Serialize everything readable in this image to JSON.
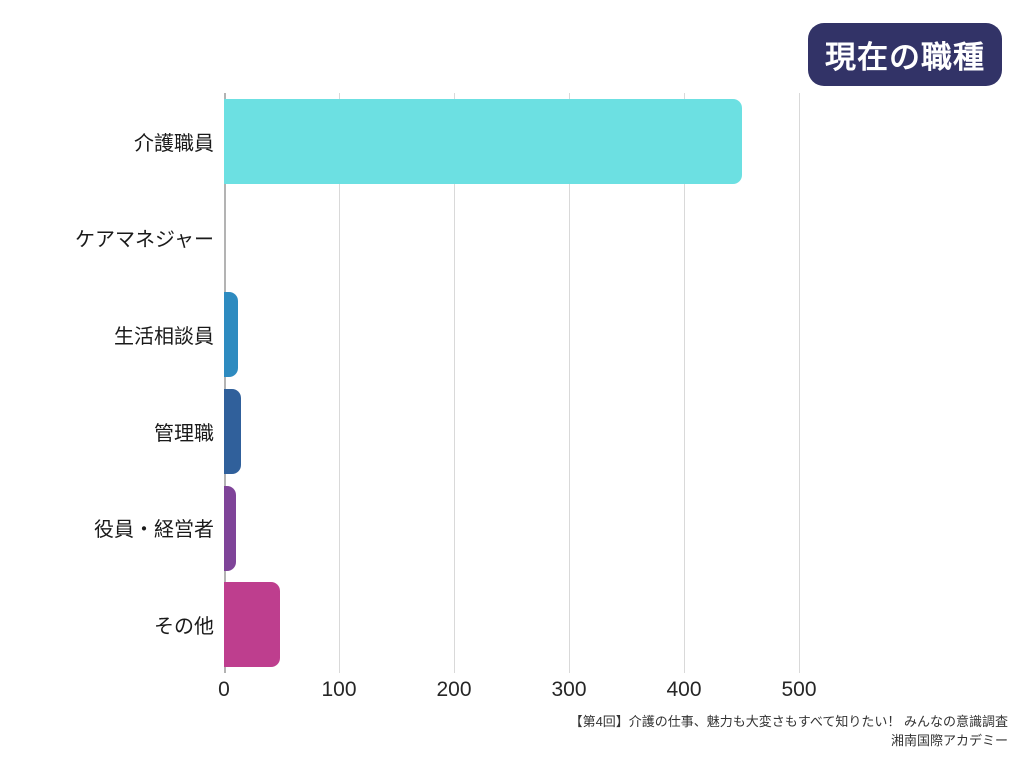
{
  "title_badge": {
    "label": "現在の職種",
    "bg_color": "#323367",
    "text_color": "#ffffff"
  },
  "chart_data": {
    "type": "bar",
    "orientation": "horizontal",
    "title": "現在の職種",
    "categories": [
      "介護職員",
      "ケアマネジャー",
      "生活相談員",
      "管理職",
      "役員・経営者",
      "その他"
    ],
    "values": [
      450,
      0,
      12,
      15,
      10,
      49
    ],
    "bar_colors": [
      "#6CE0E2",
      null,
      "#2E8BC0",
      "#30609B",
      "#7F4499",
      "#BE3E8E"
    ],
    "xlabel": "",
    "ylabel": "",
    "xlim": [
      0,
      500
    ],
    "xticks": [
      0,
      100,
      200,
      300,
      400,
      500
    ],
    "grid": true,
    "gridline_color": "#d9d9d9",
    "axis_line_color": "#b3b3b3",
    "legend": false
  },
  "source": {
    "line1": "【第4回】介護の仕事、魅力も大変さもすべて知りたい！ みんなの意識調査",
    "line2": "湘南国際アカデミー"
  }
}
